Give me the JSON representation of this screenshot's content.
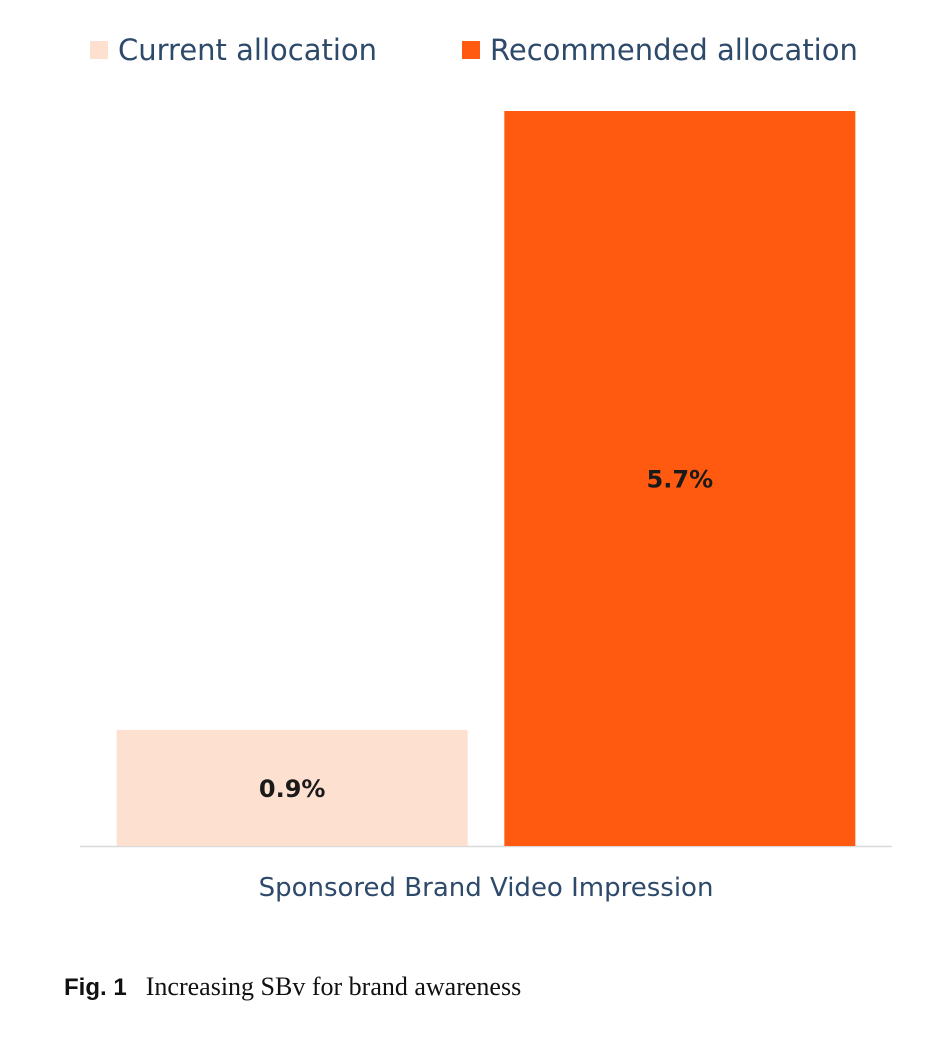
{
  "chart_data": {
    "type": "bar",
    "categories": [
      "Sponsored Brand Video Impression"
    ],
    "series": [
      {
        "name": "Current allocation",
        "values": [
          0.9
        ],
        "color": "#fde0d0",
        "label": "0.9%"
      },
      {
        "name": "Recommended allocation",
        "values": [
          5.7
        ],
        "color": "#ff5a0f",
        "label": "5.7%"
      }
    ],
    "ylim": [
      0,
      5.7
    ],
    "grid": false,
    "legend": "top"
  },
  "caption": {
    "label": "Fig. 1",
    "text": "Increasing SBv for brand awareness"
  }
}
